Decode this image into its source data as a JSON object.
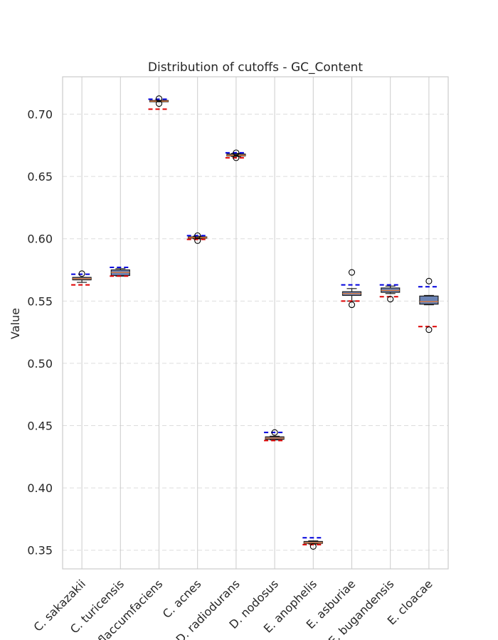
{
  "chart_data": {
    "type": "box",
    "title": "Distribution of cutoffs - GC_Content",
    "xlabel": "",
    "ylabel": "Value",
    "ylim": [
      0.335,
      0.73
    ],
    "yticks": [
      "0.35",
      "0.40",
      "0.45",
      "0.50",
      "0.55",
      "0.60",
      "0.65",
      "0.70"
    ],
    "grid": true,
    "categories": [
      "C. sakazakii",
      "C. turicensis",
      "C. flaccumfaciens",
      "C. acnes",
      "D. radiodurans",
      "D. nodosus",
      "E. anophelis",
      "E. asburiae",
      "E. bugandensis",
      "E. cloacae"
    ],
    "boxes": [
      {
        "q1": 0.567,
        "median": 0.568,
        "q3": 0.569,
        "whisker_low": 0.565,
        "whisker_high": 0.569,
        "outliers": [
          0.572
        ],
        "upper_cutoff": 0.5715,
        "lower_cutoff": 0.563
      },
      {
        "q1": 0.5705,
        "median": 0.573,
        "q3": 0.575,
        "whisker_low": 0.57,
        "whisker_high": 0.576,
        "outliers": [],
        "upper_cutoff": 0.577,
        "lower_cutoff": 0.57
      },
      {
        "q1": 0.71,
        "median": 0.7105,
        "q3": 0.711,
        "whisker_low": 0.71,
        "whisker_high": 0.711,
        "outliers": [
          0.7125,
          0.7085
        ],
        "upper_cutoff": 0.712,
        "lower_cutoff": 0.704
      },
      {
        "q1": 0.6005,
        "median": 0.601,
        "q3": 0.6015,
        "whisker_low": 0.6,
        "whisker_high": 0.602,
        "outliers": [
          0.6025,
          0.5985
        ],
        "upper_cutoff": 0.6025,
        "lower_cutoff": 0.5995
      },
      {
        "q1": 0.6665,
        "median": 0.667,
        "q3": 0.668,
        "whisker_low": 0.666,
        "whisker_high": 0.6685,
        "outliers": [
          0.669,
          0.665
        ],
        "upper_cutoff": 0.669,
        "lower_cutoff": 0.665
      },
      {
        "q1": 0.439,
        "median": 0.44,
        "q3": 0.441,
        "whisker_low": 0.4385,
        "whisker_high": 0.4415,
        "outliers": [
          0.4445
        ],
        "upper_cutoff": 0.4445,
        "lower_cutoff": 0.438
      },
      {
        "q1": 0.3555,
        "median": 0.356,
        "q3": 0.357,
        "whisker_low": 0.355,
        "whisker_high": 0.3575,
        "outliers": [
          0.353
        ],
        "upper_cutoff": 0.36,
        "lower_cutoff": 0.3545
      },
      {
        "q1": 0.5545,
        "median": 0.556,
        "q3": 0.5575,
        "whisker_low": 0.55,
        "whisker_high": 0.56,
        "outliers": [
          0.573,
          0.547
        ],
        "upper_cutoff": 0.563,
        "lower_cutoff": 0.55
      },
      {
        "q1": 0.557,
        "median": 0.5585,
        "q3": 0.5605,
        "whisker_low": 0.556,
        "whisker_high": 0.562,
        "outliers": [
          0.5515
        ],
        "upper_cutoff": 0.563,
        "lower_cutoff": 0.5535
      },
      {
        "q1": 0.5475,
        "median": 0.5495,
        "q3": 0.554,
        "whisker_low": 0.547,
        "whisker_high": 0.5545,
        "outliers": [
          0.566,
          0.527
        ],
        "upper_cutoff": 0.5615,
        "lower_cutoff": 0.5295
      }
    ],
    "colors": {
      "box_fill": "#6b83b5",
      "box_edge": "#1f1f1f",
      "median": "#e07b39",
      "upper_cutoff": "#0000dd",
      "lower_cutoff": "#dd0000",
      "grid_vertical": "#cccccc",
      "grid_horizontal": "#dddddd",
      "frame": "#cccccc",
      "outlier_edge": "#000000"
    }
  }
}
